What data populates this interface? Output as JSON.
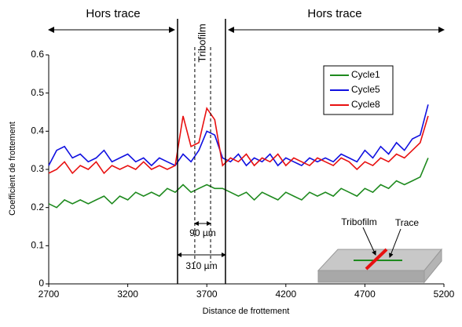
{
  "chart_data": {
    "type": "line",
    "x_label": "Distance de frottement",
    "y_label": "Coefficient de frottement",
    "x": [
      2700,
      2750,
      2800,
      2850,
      2900,
      2950,
      3000,
      3050,
      3100,
      3150,
      3200,
      3250,
      3300,
      3350,
      3400,
      3450,
      3500,
      3550,
      3600,
      3650,
      3700,
      3750,
      3800,
      3850,
      3900,
      3950,
      4000,
      4050,
      4100,
      4150,
      4200,
      4250,
      4300,
      4350,
      4400,
      4450,
      4500,
      4550,
      4600,
      4650,
      4700,
      4750,
      4800,
      4850,
      4900,
      4950,
      5000,
      5050,
      5100
    ],
    "series": [
      {
        "name": "Cycle1",
        "color": "#1e8a1e",
        "values": [
          0.21,
          0.2,
          0.22,
          0.21,
          0.22,
          0.21,
          0.22,
          0.23,
          0.21,
          0.23,
          0.22,
          0.24,
          0.23,
          0.24,
          0.23,
          0.25,
          0.24,
          0.26,
          0.24,
          0.25,
          0.26,
          0.25,
          0.25,
          0.24,
          0.23,
          0.24,
          0.22,
          0.24,
          0.23,
          0.22,
          0.24,
          0.23,
          0.22,
          0.24,
          0.23,
          0.24,
          0.23,
          0.25,
          0.24,
          0.23,
          0.25,
          0.24,
          0.26,
          0.25,
          0.27,
          0.26,
          0.27,
          0.28,
          0.33
        ]
      },
      {
        "name": "Cycle5",
        "color": "#1010e0",
        "values": [
          0.31,
          0.35,
          0.36,
          0.33,
          0.34,
          0.32,
          0.33,
          0.35,
          0.32,
          0.33,
          0.34,
          0.32,
          0.33,
          0.31,
          0.33,
          0.32,
          0.31,
          0.34,
          0.32,
          0.35,
          0.4,
          0.39,
          0.33,
          0.32,
          0.34,
          0.31,
          0.33,
          0.32,
          0.34,
          0.31,
          0.33,
          0.32,
          0.31,
          0.33,
          0.32,
          0.33,
          0.32,
          0.34,
          0.33,
          0.32,
          0.35,
          0.33,
          0.36,
          0.34,
          0.37,
          0.35,
          0.38,
          0.39,
          0.47
        ]
      },
      {
        "name": "Cycle8",
        "color": "#e81010",
        "values": [
          0.29,
          0.3,
          0.32,
          0.29,
          0.31,
          0.3,
          0.32,
          0.29,
          0.31,
          0.3,
          0.31,
          0.3,
          0.32,
          0.3,
          0.31,
          0.3,
          0.31,
          0.44,
          0.36,
          0.37,
          0.46,
          0.43,
          0.31,
          0.33,
          0.32,
          0.34,
          0.31,
          0.33,
          0.32,
          0.34,
          0.31,
          0.33,
          0.32,
          0.31,
          0.33,
          0.32,
          0.31,
          0.33,
          0.32,
          0.3,
          0.32,
          0.31,
          0.33,
          0.32,
          0.34,
          0.33,
          0.35,
          0.37,
          0.44
        ]
      }
    ],
    "xlim": [
      2700,
      5200
    ],
    "xticks": [
      2700,
      3200,
      3700,
      4200,
      4700,
      5200
    ],
    "ylim": [
      0,
      0.6
    ],
    "yticks": [
      0,
      0.1,
      0.2,
      0.3,
      0.4,
      0.5,
      0.6
    ],
    "grid": false,
    "reference_lines": [
      {
        "x": 3515,
        "style": "solid"
      },
      {
        "x": 3624,
        "style": "dashed"
      },
      {
        "x": 3724,
        "style": "dashed"
      },
      {
        "x": 3818,
        "style": "solid"
      }
    ],
    "annotations": {
      "left_region": "Hors trace",
      "right_region": "Hors trace",
      "tribofilm": "Tribofilm",
      "inner_width": "90 µm",
      "outer_width": "310 µm",
      "inset_tribofilm": "Tribofilm",
      "inset_trace": "Trace"
    }
  }
}
